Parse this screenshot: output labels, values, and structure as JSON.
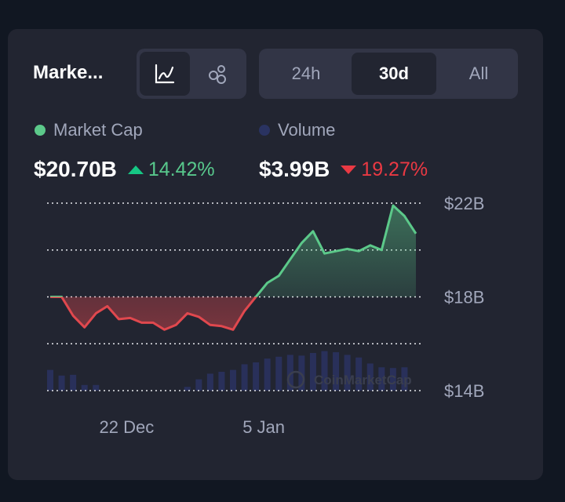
{
  "header": {
    "title": "Marke...",
    "view_buttons": [
      {
        "icon": "line-chart-icon",
        "active": true
      },
      {
        "icon": "bubbles-icon",
        "active": false
      }
    ],
    "ranges": [
      {
        "label": "24h",
        "active": false
      },
      {
        "label": "30d",
        "active": true
      },
      {
        "label": "All",
        "active": false
      }
    ]
  },
  "legend": {
    "market_cap": {
      "label": "Market Cap",
      "color": "#5cc98a"
    },
    "volume": {
      "label": "Volume",
      "color": "#2a3361"
    }
  },
  "stats": {
    "market_cap": {
      "value": "$20.70B",
      "change": "14.42%",
      "direction": "up",
      "color": "#58c88c"
    },
    "volume": {
      "value": "$3.99B",
      "change": "19.27%",
      "direction": "down",
      "color": "#ea3943"
    }
  },
  "watermark": "CoinMarketCap",
  "chart_data": {
    "type": "line",
    "baseline": 18,
    "up_color": "#5cc98a",
    "down_color": "#e0484e",
    "y_ticks": [
      {
        "value": 22,
        "label": "$22B"
      },
      {
        "value": 18,
        "label": "$18B"
      },
      {
        "value": 14,
        "label": "$14B"
      }
    ],
    "y_gridlines": [
      22,
      20,
      18,
      16,
      14
    ],
    "ylim": [
      14,
      22
    ],
    "x_ticks": [
      {
        "index": 6,
        "label": "22 Dec"
      },
      {
        "index": 18,
        "label": "5 Jan"
      }
    ],
    "series": [
      {
        "name": "Market Cap",
        "unit": "B",
        "values": [
          18.0,
          18.0,
          17.2,
          16.7,
          17.3,
          17.6,
          17.05,
          17.1,
          16.9,
          16.9,
          16.6,
          16.8,
          17.3,
          17.15,
          16.8,
          16.75,
          16.6,
          17.4,
          18.0,
          18.6,
          18.9,
          19.6,
          20.3,
          20.8,
          19.85,
          19.95,
          20.05,
          19.95,
          20.2,
          20.0,
          21.9,
          21.45,
          20.7
        ]
      },
      {
        "name": "Volume",
        "relative": true,
        "values": [
          0.55,
          0.4,
          0.42,
          0.15,
          0.15,
          0.0,
          0.0,
          0.0,
          0.0,
          0.0,
          0.0,
          0.0,
          0.1,
          0.3,
          0.45,
          0.5,
          0.55,
          0.7,
          0.75,
          0.85,
          0.9,
          0.95,
          0.93,
          1.0,
          1.05,
          1.02,
          0.95,
          0.88,
          0.72,
          0.62,
          0.6,
          0.62,
          0.0
        ]
      }
    ]
  }
}
